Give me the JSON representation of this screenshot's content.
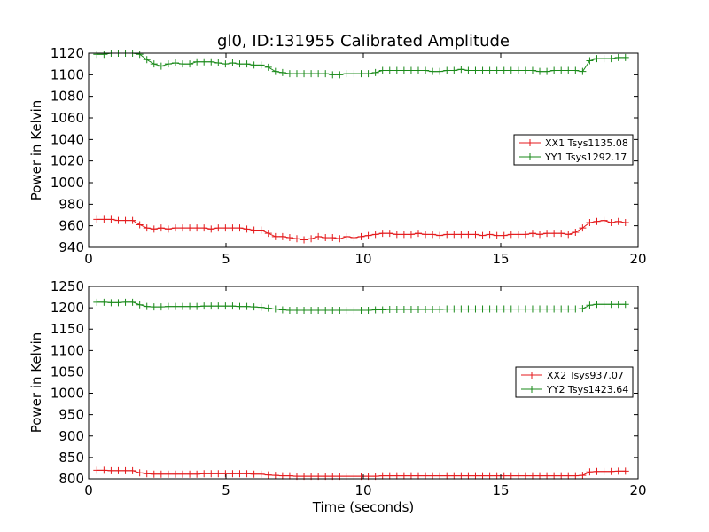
{
  "title": "gl0, ID:131955 Calibrated Amplitude",
  "xlabel": "Time (seconds)",
  "colors": {
    "xx": "#e41a1c",
    "yy": "#1a8a1a"
  },
  "chart_data": [
    {
      "type": "line",
      "title": "gl0, ID:131955 Calibrated Amplitude",
      "xlabel": "",
      "ylabel": "Power in Kelvin",
      "xlim": [
        0,
        20
      ],
      "ylim": [
        940,
        1120
      ],
      "xticks": [
        0,
        5,
        10,
        15,
        20
      ],
      "yticks": [
        940,
        960,
        980,
        1000,
        1020,
        1040,
        1060,
        1080,
        1100,
        1120
      ],
      "grid": false,
      "legend_position": "center-right",
      "x": [
        0.3,
        0.56,
        0.82,
        1.08,
        1.34,
        1.6,
        1.86,
        2.12,
        2.38,
        2.64,
        2.9,
        3.16,
        3.42,
        3.68,
        3.94,
        4.2,
        4.46,
        4.72,
        4.98,
        5.24,
        5.5,
        5.76,
        6.02,
        6.28,
        6.54,
        6.8,
        7.06,
        7.32,
        7.58,
        7.84,
        8.1,
        8.36,
        8.62,
        8.88,
        9.14,
        9.4,
        9.66,
        9.92,
        10.18,
        10.44,
        10.7,
        10.96,
        11.22,
        11.48,
        11.74,
        12.0,
        12.26,
        12.52,
        12.78,
        13.04,
        13.3,
        13.56,
        13.82,
        14.08,
        14.34,
        14.6,
        14.86,
        15.12,
        15.38,
        15.64,
        15.9,
        16.16,
        16.42,
        16.68,
        16.94,
        17.2,
        17.46,
        17.72,
        17.98,
        18.24,
        18.5,
        18.76,
        19.02,
        19.28,
        19.54
      ],
      "series": [
        {
          "name": "XX1 Tsys1135.08",
          "color": "#e41a1c",
          "values": [
            966,
            966,
            966,
            965,
            965,
            965,
            961,
            958,
            957,
            958,
            957,
            958,
            958,
            958,
            958,
            958,
            957,
            958,
            958,
            958,
            958,
            957,
            956,
            956,
            953,
            950,
            950,
            949,
            948,
            947,
            948,
            950,
            949,
            949,
            948,
            950,
            949,
            950,
            951,
            952,
            953,
            953,
            952,
            952,
            952,
            953,
            952,
            952,
            951,
            952,
            952,
            952,
            952,
            952,
            951,
            952,
            951,
            951,
            952,
            952,
            952,
            953,
            952,
            953,
            953,
            953,
            952,
            954,
            958,
            963,
            964,
            965,
            963,
            964,
            963
          ]
        },
        {
          "name": "YY1 Tsys1292.17",
          "color": "#1a8a1a",
          "values": [
            1119,
            1119,
            1120,
            1120,
            1120,
            1120,
            1119,
            1114,
            1110,
            1108,
            1110,
            1111,
            1110,
            1110,
            1112,
            1112,
            1112,
            1111,
            1110,
            1111,
            1110,
            1110,
            1109,
            1109,
            1107,
            1103,
            1102,
            1101,
            1101,
            1101,
            1101,
            1101,
            1101,
            1100,
            1100,
            1101,
            1101,
            1101,
            1101,
            1102,
            1104,
            1104,
            1104,
            1104,
            1104,
            1104,
            1104,
            1103,
            1103,
            1104,
            1104,
            1105,
            1104,
            1104,
            1104,
            1104,
            1104,
            1104,
            1104,
            1104,
            1104,
            1104,
            1103,
            1103,
            1104,
            1104,
            1104,
            1104,
            1103,
            1113,
            1115,
            1115,
            1115,
            1116,
            1116
          ]
        }
      ]
    },
    {
      "type": "line",
      "title": "",
      "xlabel": "Time (seconds)",
      "ylabel": "Power in Kelvin",
      "xlim": [
        0,
        20
      ],
      "ylim": [
        800,
        1250
      ],
      "xticks": [
        0,
        5,
        10,
        15,
        20
      ],
      "yticks": [
        800,
        850,
        900,
        950,
        1000,
        1050,
        1100,
        1150,
        1200,
        1250
      ],
      "grid": false,
      "legend_position": "center-right",
      "x": [
        0.3,
        0.56,
        0.82,
        1.08,
        1.34,
        1.6,
        1.86,
        2.12,
        2.38,
        2.64,
        2.9,
        3.16,
        3.42,
        3.68,
        3.94,
        4.2,
        4.46,
        4.72,
        4.98,
        5.24,
        5.5,
        5.76,
        6.02,
        6.28,
        6.54,
        6.8,
        7.06,
        7.32,
        7.58,
        7.84,
        8.1,
        8.36,
        8.62,
        8.88,
        9.14,
        9.4,
        9.66,
        9.92,
        10.18,
        10.44,
        10.7,
        10.96,
        11.22,
        11.48,
        11.74,
        12.0,
        12.26,
        12.52,
        12.78,
        13.04,
        13.3,
        13.56,
        13.82,
        14.08,
        14.34,
        14.6,
        14.86,
        15.12,
        15.38,
        15.64,
        15.9,
        16.16,
        16.42,
        16.68,
        16.94,
        17.2,
        17.46,
        17.72,
        17.98,
        18.24,
        18.5,
        18.76,
        19.02,
        19.28,
        19.54
      ],
      "series": [
        {
          "name": "XX2 Tsys937.07",
          "color": "#e41a1c",
          "values": [
            820,
            820,
            819,
            819,
            819,
            819,
            814,
            812,
            811,
            811,
            811,
            811,
            811,
            811,
            811,
            812,
            812,
            812,
            812,
            812,
            812,
            812,
            811,
            811,
            809,
            808,
            807,
            807,
            806,
            806,
            806,
            806,
            806,
            806,
            806,
            806,
            806,
            806,
            806,
            806,
            807,
            807,
            807,
            807,
            807,
            807,
            807,
            807,
            807,
            807,
            807,
            807,
            807,
            807,
            807,
            807,
            807,
            807,
            807,
            807,
            807,
            807,
            807,
            807,
            807,
            807,
            807,
            807,
            808,
            816,
            817,
            817,
            817,
            818,
            818
          ]
        },
        {
          "name": "YY2 Tsys1423.64",
          "color": "#1a8a1a",
          "values": [
            1213,
            1213,
            1212,
            1212,
            1213,
            1213,
            1207,
            1203,
            1202,
            1202,
            1203,
            1203,
            1203,
            1203,
            1203,
            1204,
            1204,
            1204,
            1204,
            1204,
            1203,
            1203,
            1202,
            1201,
            1199,
            1197,
            1195,
            1194,
            1194,
            1194,
            1194,
            1194,
            1194,
            1194,
            1194,
            1194,
            1194,
            1194,
            1194,
            1195,
            1195,
            1196,
            1196,
            1196,
            1196,
            1196,
            1196,
            1196,
            1196,
            1197,
            1197,
            1197,
            1197,
            1197,
            1197,
            1197,
            1197,
            1197,
            1197,
            1197,
            1197,
            1197,
            1197,
            1197,
            1197,
            1197,
            1197,
            1197,
            1198,
            1206,
            1208,
            1208,
            1208,
            1208,
            1208
          ]
        }
      ]
    }
  ]
}
